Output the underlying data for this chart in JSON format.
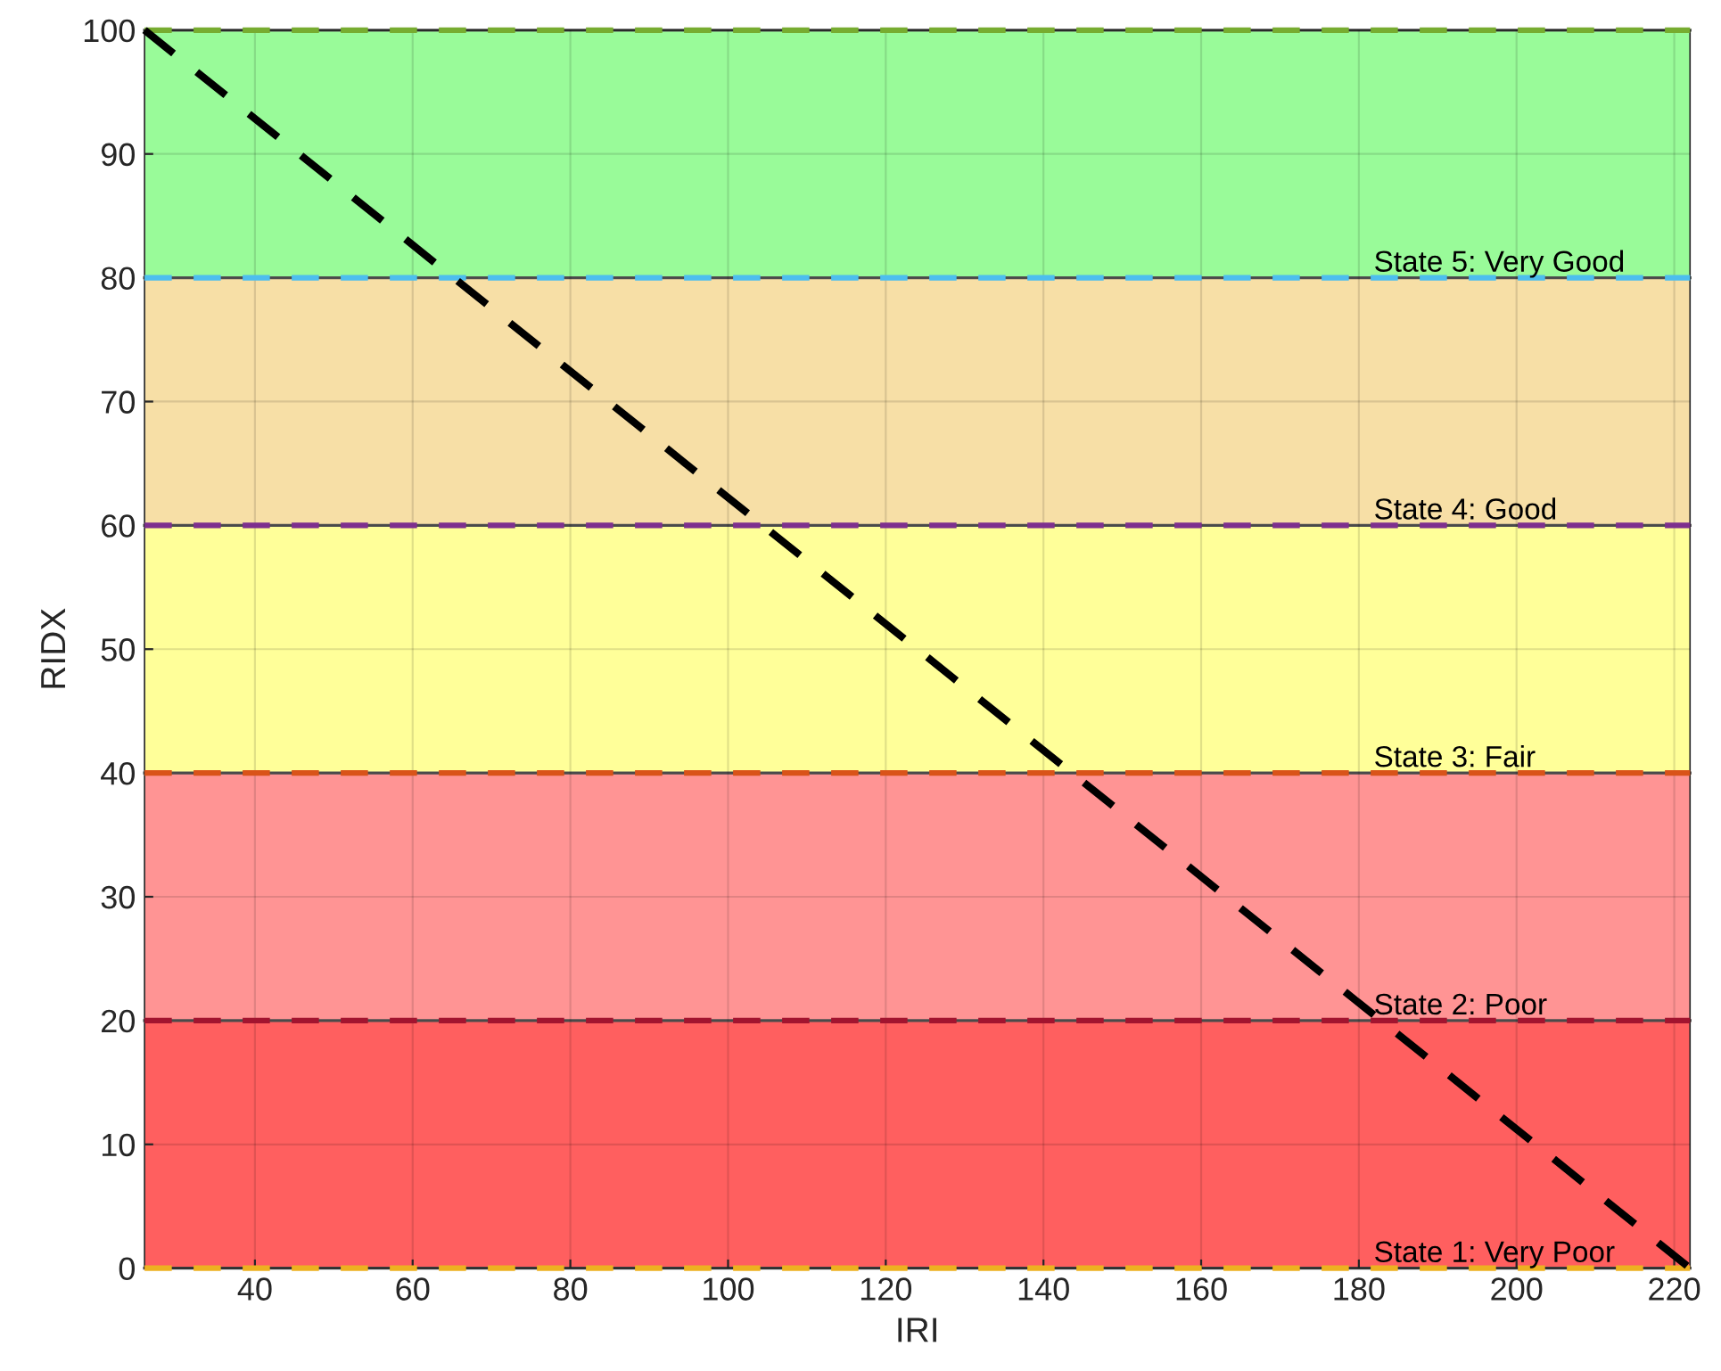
{
  "chart_data": {
    "type": "line",
    "xlabel": "IRI",
    "ylabel": "RIDX",
    "xlim": [
      26,
      222
    ],
    "ylim": [
      0,
      100
    ],
    "xticks": [
      40,
      60,
      80,
      100,
      120,
      140,
      160,
      180,
      200,
      220
    ],
    "yticks": [
      0,
      10,
      20,
      30,
      40,
      50,
      60,
      70,
      80,
      90,
      100
    ],
    "grid": true,
    "series": [
      {
        "color": "#000000",
        "x": [
          26,
          222
        ],
        "values": [
          100,
          0
        ],
        "line_style": "dashed"
      }
    ],
    "bands": [
      {
        "axis": "y",
        "from": 0,
        "to": 20,
        "label": "State 1: Very Poor",
        "color": "#ff5f5f"
      },
      {
        "axis": "y",
        "from": 20,
        "to": 40,
        "label": "State 2: Poor",
        "color": "#ff9494"
      },
      {
        "axis": "y",
        "from": 40,
        "to": 60,
        "label": "State 3: Fair",
        "color": "#ffff99"
      },
      {
        "axis": "y",
        "from": 60,
        "to": 80,
        "label": "State 4: Good",
        "color": "#f7dfa6"
      },
      {
        "axis": "y",
        "from": 80,
        "to": 100,
        "label": "State 5: Very Good",
        "color": "#99fb99"
      }
    ],
    "ref_lines": [
      {
        "axis": "y",
        "value": 0,
        "color": "#edb120",
        "line_style": "dashed"
      },
      {
        "axis": "y",
        "value": 20,
        "color": "#a2142f",
        "line_style": "dashed"
      },
      {
        "axis": "y",
        "value": 40,
        "color": "#d95319",
        "line_style": "dashed"
      },
      {
        "axis": "y",
        "value": 60,
        "color": "#7e2f8e",
        "line_style": "dashed"
      },
      {
        "axis": "y",
        "value": 80,
        "color": "#4dbeee",
        "line_style": "dashed"
      },
      {
        "axis": "y",
        "value": 100,
        "color": "#77ac30",
        "line_style": "dashed"
      }
    ]
  }
}
